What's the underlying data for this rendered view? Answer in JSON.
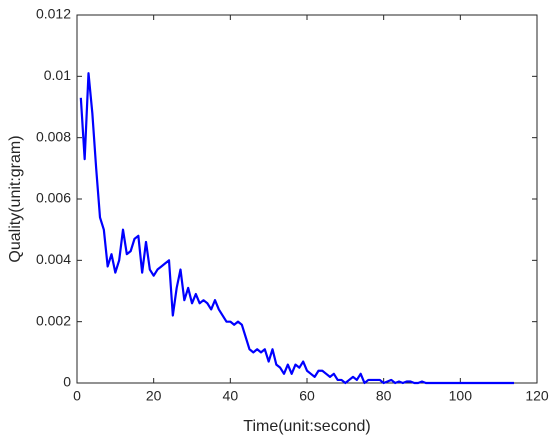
{
  "chart_data": {
    "type": "line",
    "xlabel": "Time(unit:second)",
    "ylabel": "Quality(unit:gram)",
    "x": [
      1,
      2,
      3,
      4,
      5,
      6,
      7,
      8,
      9,
      10,
      11,
      12,
      13,
      14,
      15,
      16,
      17,
      18,
      19,
      20,
      21,
      22,
      23,
      24,
      25,
      26,
      27,
      28,
      29,
      30,
      31,
      32,
      33,
      34,
      35,
      36,
      37,
      38,
      39,
      40,
      41,
      42,
      43,
      44,
      45,
      46,
      47,
      48,
      49,
      50,
      51,
      52,
      53,
      54,
      55,
      56,
      57,
      58,
      59,
      60,
      61,
      62,
      63,
      64,
      65,
      66,
      67,
      68,
      69,
      70,
      71,
      72,
      73,
      74,
      75,
      76,
      77,
      78,
      79,
      80,
      81,
      82,
      83,
      84,
      85,
      86,
      87,
      88,
      89,
      90,
      91,
      92,
      93,
      94,
      95,
      96,
      97,
      98,
      99,
      100,
      101,
      102,
      103,
      104,
      105,
      106,
      107,
      108,
      109,
      110,
      111,
      112,
      113,
      114
    ],
    "series": [
      {
        "name": "Quality",
        "color": "#0000ff",
        "values": [
          0.0093,
          0.0073,
          0.0101,
          0.0088,
          0.007,
          0.0054,
          0.005,
          0.0038,
          0.0042,
          0.0036,
          0.004,
          0.005,
          0.0042,
          0.0043,
          0.0047,
          0.0048,
          0.0036,
          0.0046,
          0.0037,
          0.0035,
          0.0037,
          0.0038,
          0.0039,
          0.004,
          0.0022,
          0.0031,
          0.0037,
          0.0027,
          0.0031,
          0.0026,
          0.0029,
          0.0026,
          0.0027,
          0.0026,
          0.0024,
          0.0027,
          0.0024,
          0.0022,
          0.002,
          0.002,
          0.0019,
          0.002,
          0.0019,
          0.0015,
          0.0011,
          0.001,
          0.0011,
          0.001,
          0.0011,
          0.0007,
          0.0011,
          0.0006,
          0.0005,
          0.0003,
          0.0006,
          0.0003,
          0.0006,
          0.0005,
          0.0007,
          0.0004,
          0.0003,
          0.0002,
          0.0004,
          0.0004,
          0.0003,
          0.0002,
          0.0003,
          0.0001,
          0.0001,
          0,
          0.0001,
          0.0002,
          0.0001,
          0.0003,
          0,
          0.0001,
          0.0001,
          0.0001,
          0.0001,
          0,
          5e-05,
          0.0001,
          0,
          5e-05,
          0,
          5e-05,
          5e-05,
          0,
          0,
          5e-05,
          0,
          0,
          0,
          0,
          0,
          0,
          0,
          0,
          0,
          0,
          0,
          0,
          0,
          0,
          0,
          0,
          0,
          0,
          0,
          0,
          0,
          0,
          0,
          0
        ]
      }
    ],
    "xlim": [
      0,
      120
    ],
    "xticks": [
      0,
      20,
      40,
      60,
      80,
      100,
      120
    ],
    "ylim": [
      0,
      0.012
    ],
    "yticks": [
      0,
      0.002,
      0.004,
      0.006,
      0.008,
      0.01,
      0.012
    ],
    "grid": false
  }
}
